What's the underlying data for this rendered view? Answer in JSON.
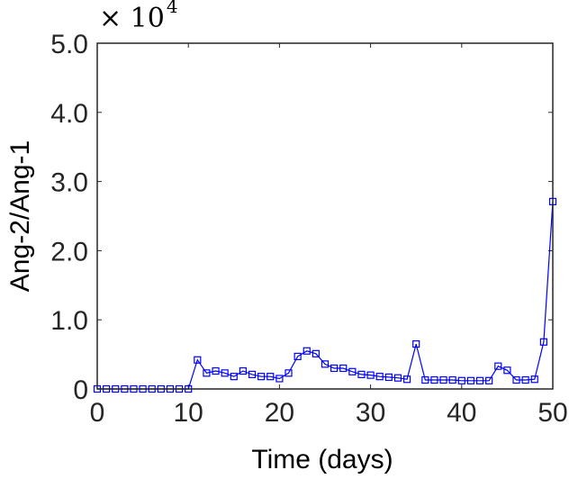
{
  "chart_data": {
    "type": "line",
    "title": "",
    "xlabel": "Time (days)",
    "ylabel": "Ang-2/Ang-1",
    "y_multiplier": "× 10^4",
    "y_multiplier_base": "× 10",
    "y_multiplier_exp": "4",
    "xlim": [
      0,
      50
    ],
    "ylim": [
      0,
      5.0
    ],
    "x_ticks": [
      0,
      10,
      20,
      30,
      40,
      50
    ],
    "x_tick_labels": [
      "0",
      "10",
      "20",
      "30",
      "40",
      "50"
    ],
    "y_ticks": [
      0,
      1.0,
      2.0,
      3.0,
      4.0,
      5.0
    ],
    "y_tick_labels": [
      "0",
      "1.0",
      "2.0",
      "3.0",
      "4.0",
      "5.0"
    ],
    "grid": false,
    "legend": null,
    "series": [
      {
        "name": "Ang-2/Ang-1",
        "color": "#0000ff",
        "marker": "square",
        "x": [
          0,
          1,
          2,
          3,
          4,
          5,
          6,
          7,
          8,
          9,
          10,
          11,
          12,
          13,
          14,
          15,
          16,
          17,
          18,
          19,
          20,
          21,
          22,
          23,
          24,
          25,
          26,
          27,
          28,
          29,
          30,
          31,
          32,
          33,
          34,
          35,
          36,
          37,
          38,
          39,
          40,
          41,
          42,
          43,
          44,
          45,
          46,
          47,
          48,
          49,
          50
        ],
        "values": [
          0,
          0,
          0,
          0,
          0,
          0,
          0,
          0,
          0,
          0,
          0,
          0.42,
          0.23,
          0.26,
          0.23,
          0.18,
          0.26,
          0.21,
          0.18,
          0.18,
          0.15,
          0.23,
          0.47,
          0.55,
          0.51,
          0.36,
          0.3,
          0.3,
          0.25,
          0.21,
          0.2,
          0.18,
          0.17,
          0.16,
          0.14,
          0.65,
          0.13,
          0.13,
          0.13,
          0.13,
          0.12,
          0.12,
          0.12,
          0.12,
          0.33,
          0.27,
          0.13,
          0.13,
          0.14,
          0.68,
          2.71
        ]
      }
    ]
  }
}
